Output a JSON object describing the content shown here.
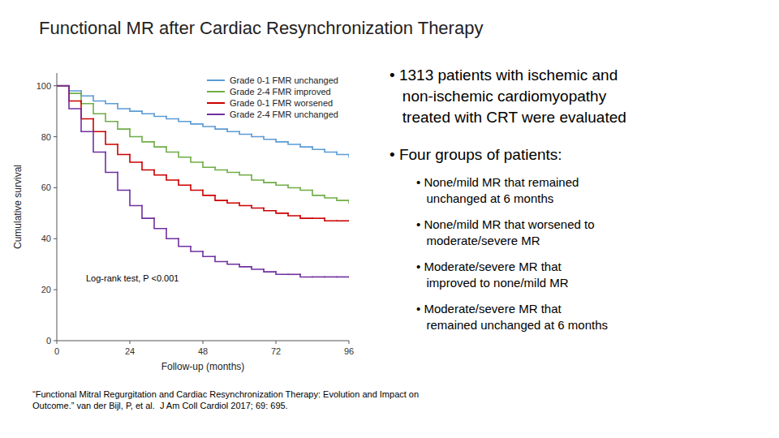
{
  "chart_data": {
    "type": "step",
    "title": "Functional MR after Cardiac Resynchronization Therapy",
    "xlabel": "Follow-up (months)",
    "ylabel": "Cumulative survival",
    "x": [
      0,
      4,
      8,
      12,
      16,
      20,
      24,
      28,
      32,
      36,
      40,
      44,
      48,
      52,
      56,
      60,
      64,
      68,
      72,
      76,
      80,
      84,
      88,
      92,
      96
    ],
    "series": [
      {
        "name": "Grade 0-1 FMR unchanged",
        "color": "#5b9bd5",
        "values": [
          100,
          98,
          96,
          94,
          93,
          91,
          90,
          89,
          88,
          87,
          86,
          85,
          84,
          83,
          82,
          81,
          80,
          79,
          78,
          77,
          76,
          75,
          74,
          73,
          72
        ]
      },
      {
        "name": "Grade 2-4 FMR improved",
        "color": "#70ad47",
        "values": [
          100,
          97,
          93,
          89,
          86,
          83,
          80,
          78,
          76,
          74,
          72,
          70,
          68,
          67,
          66,
          65,
          63,
          62,
          61,
          60,
          59,
          57,
          56,
          55,
          54
        ]
      },
      {
        "name": "Grade 0-1 FMR worsened",
        "color": "#cc0000",
        "values": [
          100,
          94,
          87,
          82,
          77,
          73,
          70,
          67,
          65,
          63,
          61,
          59,
          57,
          55,
          54,
          53,
          52,
          51,
          50,
          49,
          48,
          48,
          47,
          47,
          47
        ]
      },
      {
        "name": "Grade 2-4 FMR unchanged",
        "color": "#7030a0",
        "values": [
          100,
          91,
          82,
          74,
          66,
          59,
          53,
          48,
          44,
          40,
          37,
          35,
          33,
          31,
          30,
          29,
          28,
          27,
          26,
          26,
          25,
          25,
          25,
          25,
          25
        ]
      }
    ],
    "xlim": [
      0,
      96
    ],
    "ylim": [
      0,
      105
    ],
    "xticks": [
      0,
      24,
      48,
      72,
      96
    ],
    "yticks": [
      0,
      20,
      40,
      60,
      80,
      100
    ],
    "grid": false,
    "legend": "top-right",
    "annotations": [
      "Log-rank test, P <0.001",
      "• 1313 patients with ischemic and\n   non-ischemic cardiomyopathy\n   treated with CRT were evaluated",
      "• Four groups of patients:",
      "• None/mild MR that remained\n   unchanged at 6 months",
      "• None/mild MR that worsened to\n   moderate/severe MR",
      "• Moderate/severe MR that\n   improved to none/mild MR",
      "• Moderate/severe MR that\n   remained unchanged at 6 months",
      "“Functional Mitral Regurgitation and Cardiac Resynchronization Therapy: Evolution and Impact on\nOutcome.” van der Bijl, P, et al.  J Am Coll Cardiol 2017; 69: 695."
    ]
  }
}
